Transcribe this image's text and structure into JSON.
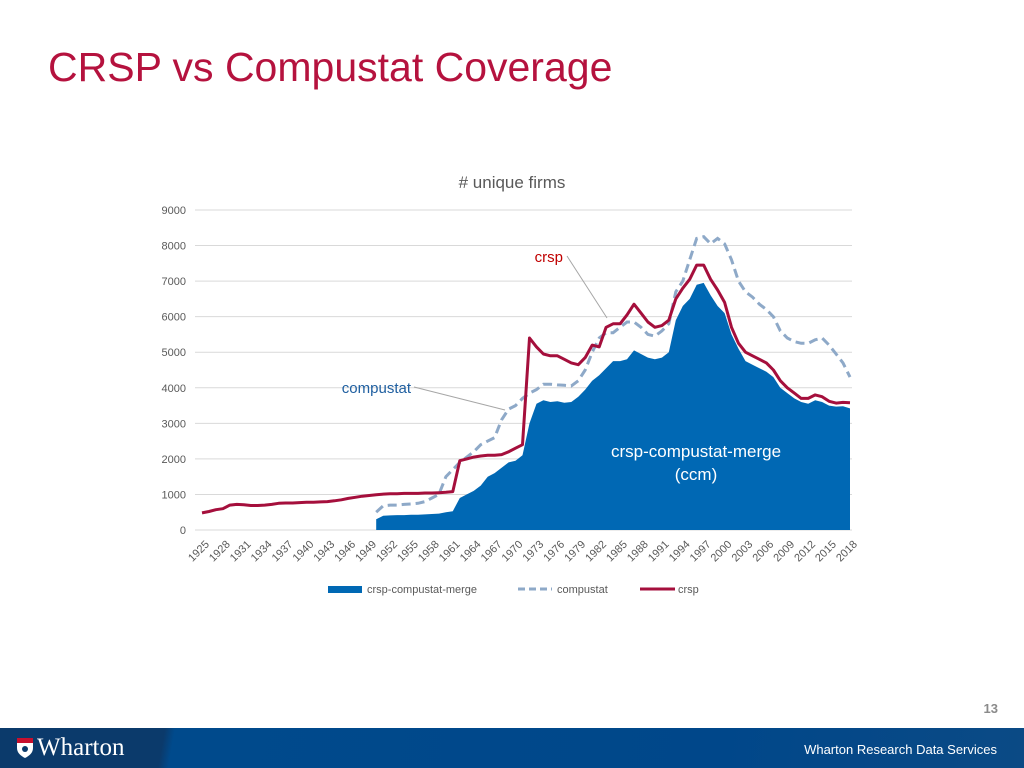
{
  "slide": {
    "title": "CRSP vs Compustat Coverage",
    "page_number": "13",
    "footer_brand": "Wharton",
    "footer_text": "Wharton Research Data Services"
  },
  "chart_data": {
    "type": "line",
    "title": "# unique firms",
    "xlabel": "",
    "ylabel": "",
    "ylim": [
      0,
      9000
    ],
    "yticks": [
      "0",
      "1000",
      "2000",
      "3000",
      "4000",
      "5000",
      "6000",
      "7000",
      "8000",
      "9000"
    ],
    "x_start": 1925,
    "x_end": 2018,
    "xtick_step": 3,
    "grid": true,
    "legend_placement": "bottom",
    "colors": {
      "crsp-compustat-merge": "#0068b4",
      "compustat": "#8ea9c8",
      "crsp": "#a50f3c"
    },
    "series": [
      {
        "name": "crsp-compustat-merge",
        "style": "area",
        "start_year": 1950,
        "values": [
          300,
          400,
          410,
          420,
          420,
          430,
          430,
          440,
          450,
          460,
          500,
          530,
          900,
          1000,
          1100,
          1250,
          1500,
          1600,
          1750,
          1900,
          1950,
          2100,
          3000,
          3550,
          3650,
          3600,
          3620,
          3580,
          3600,
          3750,
          3950,
          4200,
          4350,
          4550,
          4750,
          4750,
          4800,
          5050,
          4950,
          4850,
          4800,
          4850,
          5000,
          5900,
          6300,
          6500,
          6900,
          6950,
          6600,
          6300,
          6100,
          5500,
          5100,
          4750,
          4650,
          4550,
          4450,
          4300,
          4000,
          3850,
          3700,
          3600,
          3550,
          3650,
          3600,
          3500,
          3470,
          3480,
          3420
        ]
      },
      {
        "name": "compustat",
        "style": "dashed",
        "start_year": 1950,
        "values": [
          500,
          680,
          700,
          700,
          720,
          730,
          750,
          800,
          900,
          1000,
          1500,
          1700,
          1900,
          2050,
          2200,
          2400,
          2500,
          2600,
          3100,
          3400,
          3500,
          3700,
          3850,
          3950,
          4100,
          4100,
          4080,
          4070,
          4050,
          4200,
          4500,
          5000,
          5400,
          5550,
          5550,
          5700,
          5850,
          5850,
          5700,
          5500,
          5450,
          5600,
          5800,
          6700,
          7000,
          7600,
          8200,
          8250,
          8050,
          8200,
          8050,
          7600,
          7000,
          6700,
          6550,
          6350,
          6200,
          6000,
          5600,
          5400,
          5300,
          5250,
          5250,
          5350,
          5400,
          5200,
          4950,
          4700,
          4300
        ]
      },
      {
        "name": "crsp",
        "style": "line",
        "start_year": 1925,
        "values": [
          480,
          520,
          570,
          600,
          700,
          720,
          710,
          690,
          690,
          700,
          720,
          750,
          760,
          760,
          770,
          780,
          780,
          790,
          800,
          820,
          850,
          890,
          920,
          950,
          970,
          990,
          1010,
          1020,
          1020,
          1030,
          1030,
          1030,
          1040,
          1040,
          1050,
          1060,
          1080,
          1950,
          2000,
          2050,
          2080,
          2100,
          2100,
          2120,
          2200,
          2300,
          2400,
          5400,
          5150,
          4950,
          4900,
          4900,
          4800,
          4700,
          4650,
          4850,
          5200,
          5150,
          5700,
          5800,
          5800,
          6050,
          6350,
          6100,
          5850,
          5700,
          5750,
          5900,
          6500,
          6800,
          7050,
          7450,
          7450,
          7050,
          6750,
          6400,
          5700,
          5250,
          5000,
          4900,
          4800,
          4700,
          4500,
          4200,
          4000,
          3850,
          3700,
          3700,
          3800,
          3750,
          3620,
          3570,
          3590,
          3580
        ]
      }
    ],
    "annotations": {
      "crsp": "crsp",
      "compustat": "compustat",
      "ccm_line1": "crsp-compustat-merge",
      "ccm_line2": "(ccm)"
    },
    "legend": [
      "crsp-compustat-merge",
      "compustat",
      "crsp"
    ]
  }
}
